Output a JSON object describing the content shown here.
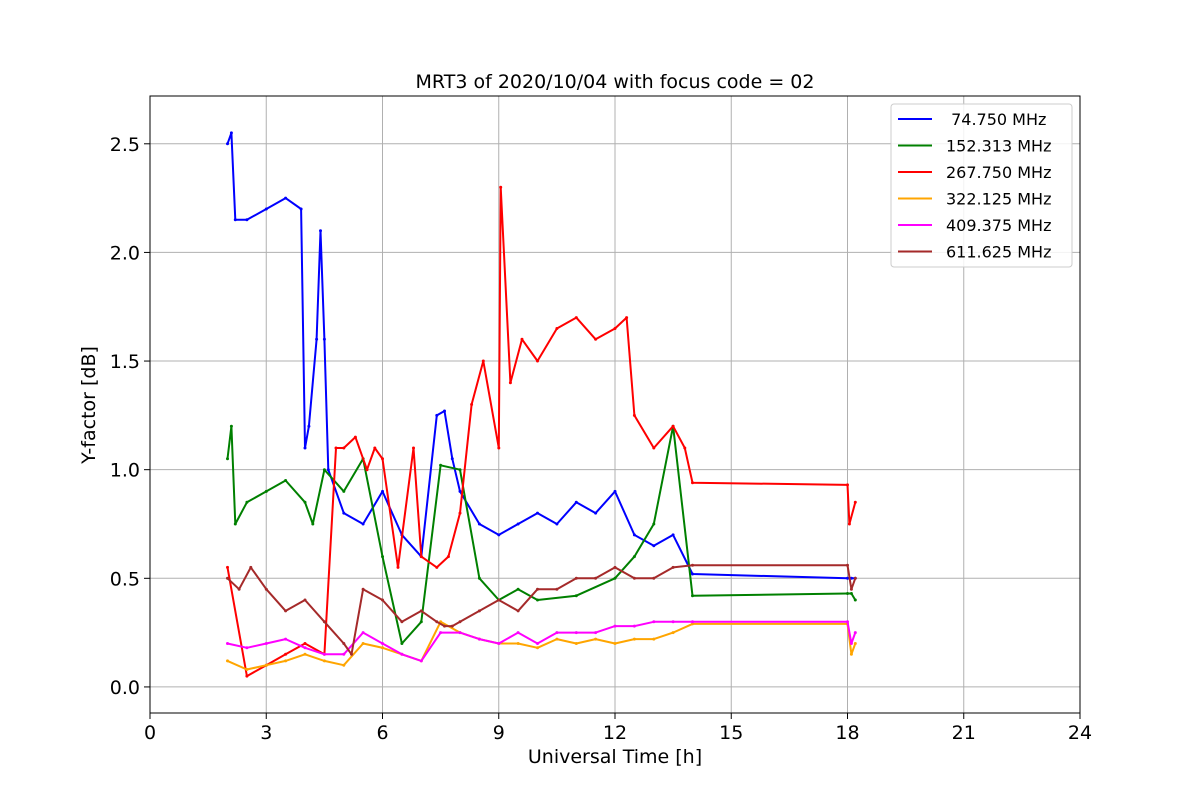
{
  "chart_data": {
    "type": "line",
    "title": "MRT3 of 2020/10/04 with focus code = 02",
    "xlabel": "Universal Time [h]",
    "ylabel": "Y-factor [dB]",
    "xlim": [
      0,
      24
    ],
    "ylim": [
      -0.12,
      2.72
    ],
    "xticks": [
      "0",
      "3",
      "6",
      "9",
      "12",
      "15",
      "18",
      "21",
      "24"
    ],
    "yticks": [
      "0.0",
      "0.5",
      "1.0",
      "1.5",
      "2.0",
      "2.5"
    ],
    "grid": true,
    "legend_position": "top-right",
    "series": [
      {
        "name": " 74.750 MHz",
        "color": "#0000ff",
        "x": [
          2.0,
          2.1,
          2.2,
          2.5,
          3.0,
          3.5,
          3.9,
          4.0,
          4.1,
          4.3,
          4.4,
          4.5,
          4.6,
          5.0,
          5.5,
          6.0,
          6.5,
          7.0,
          7.4,
          7.6,
          7.8,
          8.0,
          8.5,
          9.0,
          9.5,
          10.0,
          10.5,
          11.0,
          11.5,
          12.0,
          12.5,
          13.0,
          13.5,
          14.0,
          18.0,
          18.1,
          18.2
        ],
        "y": [
          2.5,
          2.55,
          2.15,
          2.15,
          2.2,
          2.25,
          2.2,
          1.1,
          1.2,
          1.6,
          2.1,
          1.6,
          1.0,
          0.8,
          0.75,
          0.9,
          0.7,
          0.6,
          1.25,
          1.27,
          1.05,
          0.9,
          0.75,
          0.7,
          0.75,
          0.8,
          0.75,
          0.85,
          0.8,
          0.9,
          0.7,
          0.65,
          0.7,
          0.52,
          0.5,
          0.5,
          0.5
        ]
      },
      {
        "name": "152.313 MHz",
        "color": "#008000",
        "x": [
          2.0,
          2.1,
          2.2,
          2.5,
          3.0,
          3.5,
          4.0,
          4.2,
          4.5,
          5.0,
          5.5,
          6.0,
          6.5,
          7.0,
          7.5,
          8.0,
          8.5,
          9.0,
          9.5,
          10.0,
          11.0,
          12.0,
          12.5,
          13.0,
          13.5,
          14.0,
          18.0,
          18.1,
          18.2
        ],
        "y": [
          1.05,
          1.2,
          0.75,
          0.85,
          0.9,
          0.95,
          0.85,
          0.75,
          1.0,
          0.9,
          1.05,
          0.6,
          0.2,
          0.3,
          1.02,
          1.0,
          0.5,
          0.4,
          0.45,
          0.4,
          0.42,
          0.5,
          0.6,
          0.75,
          1.2,
          0.42,
          0.43,
          0.43,
          0.4
        ]
      },
      {
        "name": "267.750 MHz",
        "color": "#ff0000",
        "x": [
          2.0,
          2.5,
          3.0,
          3.5,
          4.0,
          4.5,
          4.8,
          5.0,
          5.3,
          5.6,
          5.8,
          6.0,
          6.4,
          6.8,
          7.0,
          7.4,
          7.7,
          8.0,
          8.3,
          8.6,
          9.0,
          9.05,
          9.3,
          9.6,
          10.0,
          10.5,
          11.0,
          11.5,
          12.0,
          12.3,
          12.5,
          13.0,
          13.5,
          13.8,
          14.0,
          18.0,
          18.05,
          18.2
        ],
        "y": [
          0.55,
          0.05,
          0.1,
          0.15,
          0.2,
          0.15,
          1.1,
          1.1,
          1.15,
          1.0,
          1.1,
          1.05,
          0.55,
          1.1,
          0.6,
          0.55,
          0.6,
          0.8,
          1.3,
          1.5,
          1.1,
          2.3,
          1.4,
          1.6,
          1.5,
          1.65,
          1.7,
          1.6,
          1.65,
          1.7,
          1.25,
          1.1,
          1.2,
          1.1,
          0.94,
          0.93,
          0.75,
          0.85
        ]
      },
      {
        "name": "322.125 MHz",
        "color": "#ffa500",
        "x": [
          2.0,
          2.5,
          3.0,
          3.5,
          4.0,
          4.5,
          5.0,
          5.5,
          6.0,
          6.5,
          7.0,
          7.5,
          8.0,
          8.5,
          9.0,
          9.5,
          10.0,
          10.5,
          11.0,
          11.5,
          12.0,
          12.5,
          13.0,
          13.5,
          14.0,
          18.0,
          18.1,
          18.2
        ],
        "y": [
          0.12,
          0.08,
          0.1,
          0.12,
          0.15,
          0.12,
          0.1,
          0.2,
          0.18,
          0.15,
          0.12,
          0.3,
          0.25,
          0.22,
          0.2,
          0.2,
          0.18,
          0.22,
          0.2,
          0.22,
          0.2,
          0.22,
          0.22,
          0.25,
          0.29,
          0.29,
          0.15,
          0.2
        ]
      },
      {
        "name": "409.375 MHz",
        "color": "#ff00ff",
        "x": [
          2.0,
          2.5,
          3.0,
          3.5,
          4.0,
          4.5,
          5.0,
          5.5,
          6.0,
          6.5,
          7.0,
          7.5,
          8.0,
          8.5,
          9.0,
          9.5,
          10.0,
          10.5,
          11.0,
          11.5,
          12.0,
          12.5,
          13.0,
          13.5,
          14.0,
          18.0,
          18.1,
          18.2
        ],
        "y": [
          0.2,
          0.18,
          0.2,
          0.22,
          0.18,
          0.15,
          0.15,
          0.25,
          0.2,
          0.15,
          0.12,
          0.25,
          0.25,
          0.22,
          0.2,
          0.25,
          0.2,
          0.25,
          0.25,
          0.25,
          0.28,
          0.28,
          0.3,
          0.3,
          0.3,
          0.3,
          0.2,
          0.25
        ]
      },
      {
        "name": "611.625 MHz",
        "color": "#a52a2a",
        "x": [
          2.0,
          2.3,
          2.6,
          3.0,
          3.5,
          4.0,
          4.5,
          5.0,
          5.2,
          5.5,
          6.0,
          6.5,
          7.0,
          7.4,
          7.6,
          7.8,
          8.0,
          8.5,
          9.0,
          9.5,
          10.0,
          10.5,
          11.0,
          11.5,
          12.0,
          12.5,
          13.0,
          13.5,
          14.0,
          18.0,
          18.1,
          18.2
        ],
        "y": [
          0.5,
          0.45,
          0.55,
          0.45,
          0.35,
          0.4,
          0.3,
          0.2,
          0.15,
          0.45,
          0.4,
          0.3,
          0.35,
          0.3,
          0.28,
          0.28,
          0.3,
          0.35,
          0.4,
          0.35,
          0.45,
          0.45,
          0.5,
          0.5,
          0.55,
          0.5,
          0.5,
          0.55,
          0.56,
          0.56,
          0.45,
          0.5
        ]
      }
    ]
  }
}
